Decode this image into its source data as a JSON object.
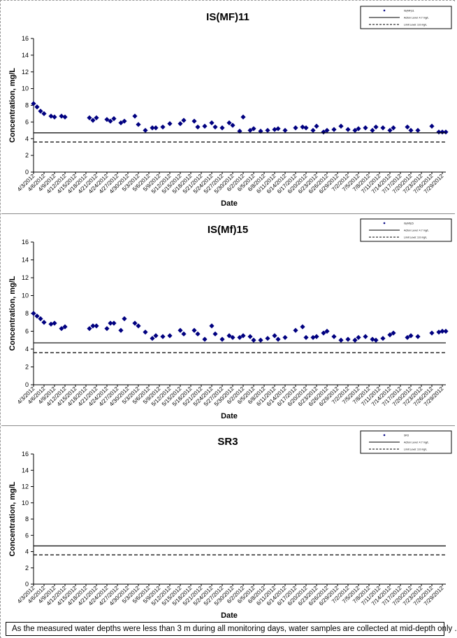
{
  "chart_data": [
    {
      "type": "scatter",
      "title": "IS(MF)11",
      "xlabel": "Date",
      "ylabel": "Concentration, mg/L",
      "ylim": [
        0,
        16
      ],
      "yticks": [
        0,
        2,
        4,
        6,
        8,
        10,
        12,
        14,
        16
      ],
      "xticks": [
        "4/3/2012",
        "4/6/2012",
        "4/9/2012",
        "4/12/2012",
        "4/15/2012",
        "4/18/2012",
        "4/21/2012",
        "4/24/2012",
        "4/27/2012",
        "4/30/2012",
        "5/3/2012",
        "5/6/2012",
        "5/9/2012",
        "5/12/2012",
        "5/15/2012",
        "5/18/2012",
        "5/21/2012",
        "5/24/2012",
        "5/27/2012",
        "5/30/2012",
        "6/2/2012",
        "6/5/2012",
        "6/8/2012",
        "6/11/2012",
        "6/14/2012",
        "6/17/2012",
        "6/20/2012",
        "6/23/2012",
        "6/26/2012",
        "6/29/2012",
        "7/2/2012",
        "7/5/2012",
        "7/8/2012",
        "7/11/2012",
        "7/14/2012",
        "7/17/2012",
        "7/20/2012",
        "7/23/2012",
        "7/26/2012",
        "7/29/2012"
      ],
      "grid": false,
      "legend_position": "top-right",
      "series": [
        {
          "name": "IS(MF)11",
          "marker": "diamond",
          "color": "#000080",
          "x": [
            "4/3/2012",
            "4/4/2012",
            "4/5/2012",
            "4/6/2012",
            "4/8/2012",
            "4/9/2012",
            "4/11/2012",
            "4/12/2012",
            "4/19/2012",
            "4/20/2012",
            "4/21/2012",
            "4/24/2012",
            "4/25/2012",
            "4/26/2012",
            "4/28/2012",
            "4/29/2012",
            "5/2/2012",
            "5/3/2012",
            "5/5/2012",
            "5/7/2012",
            "5/8/2012",
            "5/10/2012",
            "5/12/2012",
            "5/15/2012",
            "5/16/2012",
            "5/19/2012",
            "5/20/2012",
            "5/22/2012",
            "5/24/2012",
            "5/25/2012",
            "5/27/2012",
            "5/29/2012",
            "5/30/2012",
            "6/1/2012",
            "6/2/2012",
            "6/4/2012",
            "6/5/2012",
            "6/7/2012",
            "6/9/2012",
            "6/11/2012",
            "6/12/2012",
            "6/14/2012",
            "6/17/2012",
            "6/19/2012",
            "6/20/2012",
            "6/22/2012",
            "6/23/2012",
            "6/25/2012",
            "6/26/2012",
            "6/28/2012",
            "6/30/2012",
            "7/2/2012",
            "7/4/2012",
            "7/5/2012",
            "7/7/2012",
            "7/9/2012",
            "7/10/2012",
            "7/12/2012",
            "7/14/2012",
            "7/15/2012",
            "7/19/2012",
            "7/20/2012",
            "7/22/2012",
            "7/26/2012",
            "7/28/2012",
            "7/29/2012",
            "7/30/2012"
          ],
          "y": [
            8.2,
            7.8,
            7.3,
            7.0,
            6.7,
            6.6,
            6.7,
            6.6,
            6.5,
            6.2,
            6.5,
            6.3,
            6.1,
            6.4,
            5.9,
            6.1,
            6.7,
            5.7,
            5.0,
            5.3,
            5.3,
            5.4,
            5.8,
            5.8,
            6.2,
            6.1,
            5.4,
            5.5,
            5.9,
            5.4,
            5.3,
            5.9,
            5.6,
            4.9,
            6.6,
            5.0,
            5.2,
            4.9,
            5.0,
            5.1,
            5.2,
            5.0,
            5.3,
            5.4,
            5.3,
            5.0,
            5.5,
            4.8,
            5.0,
            5.1,
            5.5,
            5.1,
            5.0,
            5.2,
            5.3,
            5.0,
            5.4,
            5.3,
            5.0,
            5.3,
            5.4,
            5.0,
            5.0,
            5.5,
            4.8,
            4.8,
            4.8
          ]
        },
        {
          "name": "Action Level: 4.7 mg/L",
          "style": "solid",
          "y_constant": 4.7
        },
        {
          "name": "Limit Level: 3.6 mg/L",
          "style": "dashed",
          "y_constant": 3.6
        }
      ]
    },
    {
      "type": "scatter",
      "title": "IS(Mf)15",
      "xlabel": "Date",
      "ylabel": "Concentration, mg/L",
      "ylim": [
        0,
        16
      ],
      "yticks": [
        0,
        2,
        4,
        6,
        8,
        10,
        12,
        14,
        16
      ],
      "xticks": [
        "4/3/2012",
        "4/6/2012",
        "4/9/2012",
        "4/12/2012",
        "4/15/2012",
        "4/18/2012",
        "4/21/2012",
        "4/24/2012",
        "4/27/2012",
        "4/30/2012",
        "5/3/2012",
        "5/6/2012",
        "5/9/2012",
        "5/12/2012",
        "5/15/2012",
        "5/18/2012",
        "5/21/2012",
        "5/24/2012",
        "5/27/2012",
        "5/30/2012",
        "6/2/2012",
        "6/5/2012",
        "6/8/2012",
        "6/11/2012",
        "6/14/2012",
        "6/17/2012",
        "6/20/2012",
        "6/23/2012",
        "6/26/2012",
        "6/29/2012",
        "7/2/2012",
        "7/5/2012",
        "7/8/2012",
        "7/11/2012",
        "7/14/2012",
        "7/17/2012",
        "7/20/2012",
        "7/23/2012",
        "7/26/2012",
        "7/29/2012"
      ],
      "grid": false,
      "legend_position": "top-right",
      "series": [
        {
          "name": "IS(Mf)15",
          "marker": "diamond",
          "color": "#000080",
          "x": [
            "4/3/2012",
            "4/4/2012",
            "4/5/2012",
            "4/6/2012",
            "4/8/2012",
            "4/9/2012",
            "4/11/2012",
            "4/12/2012",
            "4/19/2012",
            "4/20/2012",
            "4/21/2012",
            "4/24/2012",
            "4/25/2012",
            "4/26/2012",
            "4/28/2012",
            "4/29/2012",
            "5/2/2012",
            "5/3/2012",
            "5/5/2012",
            "5/7/2012",
            "5/8/2012",
            "5/10/2012",
            "5/12/2012",
            "5/15/2012",
            "5/16/2012",
            "5/19/2012",
            "5/20/2012",
            "5/22/2012",
            "5/24/2012",
            "5/25/2012",
            "5/27/2012",
            "5/29/2012",
            "5/30/2012",
            "6/1/2012",
            "6/2/2012",
            "6/4/2012",
            "6/5/2012",
            "6/7/2012",
            "6/9/2012",
            "6/11/2012",
            "6/12/2012",
            "6/14/2012",
            "6/17/2012",
            "6/19/2012",
            "6/20/2012",
            "6/22/2012",
            "6/23/2012",
            "6/25/2012",
            "6/26/2012",
            "6/28/2012",
            "6/30/2012",
            "7/2/2012",
            "7/4/2012",
            "7/5/2012",
            "7/7/2012",
            "7/9/2012",
            "7/10/2012",
            "7/12/2012",
            "7/14/2012",
            "7/15/2012",
            "7/19/2012",
            "7/20/2012",
            "7/22/2012",
            "7/26/2012",
            "7/28/2012",
            "7/29/2012",
            "7/30/2012"
          ],
          "y": [
            8.0,
            7.7,
            7.4,
            7.0,
            6.8,
            6.9,
            6.3,
            6.5,
            6.3,
            6.6,
            6.6,
            6.3,
            6.9,
            6.9,
            6.1,
            7.4,
            6.9,
            6.6,
            5.9,
            5.2,
            5.5,
            5.4,
            5.5,
            6.1,
            5.7,
            6.1,
            5.7,
            5.1,
            6.6,
            5.7,
            5.1,
            5.5,
            5.3,
            5.3,
            5.5,
            5.4,
            5.0,
            5.0,
            5.2,
            5.5,
            5.1,
            5.3,
            6.1,
            6.5,
            5.3,
            5.3,
            5.4,
            5.8,
            6.0,
            5.4,
            5.0,
            5.1,
            5.0,
            5.3,
            5.4,
            5.1,
            5.0,
            5.2,
            5.6,
            5.8,
            5.3,
            5.5,
            5.4,
            5.8,
            5.9,
            6.0,
            6.0
          ]
        },
        {
          "name": "Action Level: 4.7 mg/L",
          "style": "solid",
          "y_constant": 4.7
        },
        {
          "name": "Limit Level: 3.6 mg/L",
          "style": "dashed",
          "y_constant": 3.6
        }
      ]
    },
    {
      "type": "scatter",
      "title": "SR3",
      "xlabel": "Date",
      "ylabel": "Concentration, mg/L",
      "ylim": [
        0,
        16
      ],
      "yticks": [
        0,
        2,
        4,
        6,
        8,
        10,
        12,
        14,
        16
      ],
      "xticks": [
        "4/3/2012",
        "4/6/2012",
        "4/9/2012",
        "4/12/2012",
        "4/15/2012",
        "4/18/2012",
        "4/21/2012",
        "4/24/2012",
        "4/27/2012",
        "4/30/2012",
        "5/3/2012",
        "5/6/2012",
        "5/9/2012",
        "5/12/2012",
        "5/15/2012",
        "5/18/2012",
        "5/21/2012",
        "5/24/2012",
        "5/27/2012",
        "5/30/2012",
        "6/2/2012",
        "6/5/2012",
        "6/8/2012",
        "6/11/2012",
        "6/14/2012",
        "6/17/2012",
        "6/20/2012",
        "6/23/2012",
        "6/26/2012",
        "6/29/2012",
        "7/2/2012",
        "7/5/2012",
        "7/8/2012",
        "7/11/2012",
        "7/14/2012",
        "7/17/2012",
        "7/20/2012",
        "7/23/2012",
        "7/26/2012",
        "7/29/2012"
      ],
      "grid": false,
      "legend_position": "top-right",
      "series": [
        {
          "name": "SR3",
          "marker": "diamond",
          "color": "#000080",
          "x": [],
          "y": []
        },
        {
          "name": "Action Level: 4.7 mg/L",
          "style": "solid",
          "y_constant": 4.7
        },
        {
          "name": "Limit Level: 3.6 mg/L",
          "style": "dashed",
          "y_constant": 3.6
        }
      ]
    }
  ],
  "footnote": "As the measured water depths were less than 3 m during all monitoring days, water samples are collected at mid-depth only ."
}
